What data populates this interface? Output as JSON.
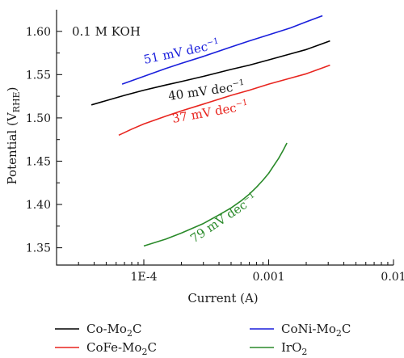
{
  "chart_data": {
    "type": "line",
    "x_scale": "log",
    "xlim": [
      2e-05,
      0.01
    ],
    "ylim": [
      1.33,
      1.625
    ],
    "grid": false,
    "xlabel": "Current (A)",
    "ylabel": "Potential (V",
    "ylabel_sub": "RHE",
    "ylabel_close": ")",
    "condition_label": "0.1 M KOH",
    "x_ticks": [
      {
        "value": 0.0001,
        "label": "1E-4"
      },
      {
        "value": 0.001,
        "label": "0.001"
      },
      {
        "value": 0.01,
        "label": "0.01"
      }
    ],
    "x_minor_ticks": [
      3e-05,
      4e-05,
      5e-05,
      6e-05,
      7e-05,
      8e-05,
      9e-05,
      0.0002,
      0.0003,
      0.0004,
      0.0005,
      0.0006,
      0.0007,
      0.0008,
      0.0009,
      0.002,
      0.003,
      0.004,
      0.005,
      0.006,
      0.007,
      0.008,
      0.009
    ],
    "y_ticks": [
      {
        "value": 1.35,
        "label": "1.35"
      },
      {
        "value": 1.4,
        "label": "1.40"
      },
      {
        "value": 1.45,
        "label": "1.45"
      },
      {
        "value": 1.5,
        "label": "1.50"
      },
      {
        "value": 1.55,
        "label": "1.55"
      },
      {
        "value": 1.6,
        "label": "1.60"
      }
    ],
    "y_minor_ticks": [
      1.375,
      1.425,
      1.475,
      1.525,
      1.575
    ],
    "legend_position": "bottom, below plot, two columns",
    "series": [
      {
        "name": "Co-Mo",
        "name_sub": "2",
        "name_tail": "C",
        "color": "#000000",
        "x": [
          3.8e-05,
          5e-05,
          7e-05,
          0.0001,
          0.00015,
          0.0002,
          0.0003,
          0.0005,
          0.0007,
          0.001,
          0.0015,
          0.002,
          0.0025,
          0.0031
        ],
        "y": [
          1.515,
          1.52,
          1.526,
          1.532,
          1.538,
          1.542,
          1.548,
          1.556,
          1.561,
          1.567,
          1.574,
          1.579,
          1.584,
          1.589
        ],
        "slope_label": "40 mV dec",
        "slope_sup": "−1",
        "label_color": "#000000"
      },
      {
        "name": "CoFe-Mo",
        "name_sub": "2",
        "name_tail": "C",
        "color": "#e8251f",
        "x": [
          6.3e-05,
          8e-05,
          0.0001,
          0.00015,
          0.0002,
          0.0003,
          0.0005,
          0.0007,
          0.001,
          0.0015,
          0.002,
          0.0025,
          0.0031
        ],
        "y": [
          1.48,
          1.487,
          1.493,
          1.502,
          1.508,
          1.516,
          1.526,
          1.532,
          1.539,
          1.546,
          1.551,
          1.556,
          1.561
        ],
        "slope_label": "37 mV dec",
        "slope_sup": "−1",
        "label_color": "#e8251f"
      },
      {
        "name": "CoNi-Mo",
        "name_sub": "2",
        "name_tail": "C",
        "color": "#1a1fdc",
        "x": [
          6.7e-05,
          0.0001,
          0.00015,
          0.0002,
          0.0003,
          0.0005,
          0.0007,
          0.001,
          0.0015,
          0.002,
          0.0027
        ],
        "y": [
          1.539,
          1.548,
          1.557,
          1.563,
          1.571,
          1.582,
          1.589,
          1.596,
          1.604,
          1.611,
          1.618
        ],
        "slope_label": "51 mV dec",
        "slope_sup": "−1",
        "label_color": "#1a1fdc"
      },
      {
        "name": "IrO",
        "name_sub": "2",
        "name_tail": "",
        "color": "#2a8a2a",
        "x": [
          0.0001,
          0.00015,
          0.0002,
          0.0003,
          0.0004,
          0.0005,
          0.0006,
          0.0007,
          0.0008,
          0.0009,
          0.001,
          0.0011,
          0.0012,
          0.0013,
          0.0014
        ],
        "y": [
          1.352,
          1.36,
          1.367,
          1.378,
          1.388,
          1.396,
          1.404,
          1.412,
          1.42,
          1.428,
          1.436,
          1.445,
          1.453,
          1.462,
          1.471
        ],
        "slope_label": "79 mV dec",
        "slope_sup": "−1",
        "label_color": "#2a8a2a"
      }
    ]
  }
}
